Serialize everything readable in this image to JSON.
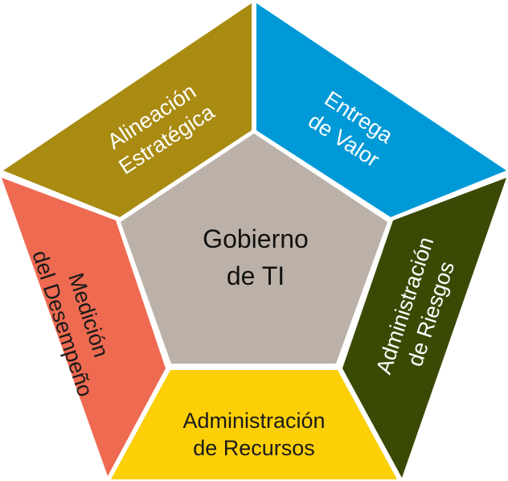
{
  "center": {
    "line1": "Gobierno",
    "line2": "de TI",
    "color": "#bbb1a8",
    "text_color": "#111111"
  },
  "segments": {
    "alineacion": {
      "line1": "Alineación",
      "line2": "Estratégica",
      "color": "#a98b12",
      "text_color": "#ffffff"
    },
    "entrega": {
      "line1": "Entrega",
      "line2": "de Valor",
      "color": "#0099d7",
      "text_color": "#ffffff"
    },
    "riesgos": {
      "line1": "Administración",
      "line2": "de Riesgos",
      "color": "#3a4a05",
      "text_color": "#ffffff"
    },
    "recursos": {
      "line1": "Administración",
      "line2": "de Recursos",
      "color": "#fccf06",
      "text_color": "#1a1a1a"
    },
    "desempeno": {
      "line1": "Medición",
      "line2": "del Desempeño",
      "color": "#ee6a50",
      "text_color": "#1a1a1a"
    }
  }
}
